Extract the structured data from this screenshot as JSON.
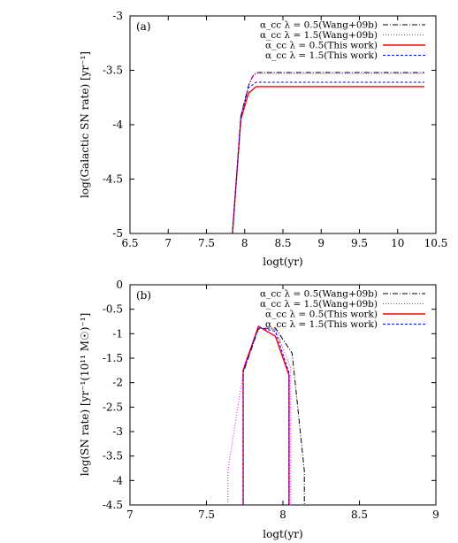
{
  "chart_data": [
    {
      "type": "line",
      "panel_label": "(a)",
      "xlabel": "logt(yr)",
      "ylabel": "log(Galactic SN rate) [yr⁻¹]",
      "xlim": [
        6.5,
        10.5
      ],
      "ylim": [
        -5,
        -3
      ],
      "xticks": [
        "6.5",
        "7",
        "7.5",
        "8",
        "8.5",
        "9",
        "9.5",
        "10",
        "10.5"
      ],
      "yticks": [
        "-3",
        "-3.5",
        "-4",
        "-4.5",
        "-5"
      ],
      "legend_position": "top-right",
      "grid": false,
      "series": [
        {
          "name": "α_cc λ = 0.5(Wang+09b)",
          "color": "#000000",
          "dash": "6,2,1,2",
          "x": [
            7.84,
            7.95,
            8.05,
            8.1,
            8.15,
            10.35
          ],
          "y": [
            -5,
            -3.92,
            -3.64,
            -3.56,
            -3.52,
            -3.52
          ]
        },
        {
          "name": "α_cc λ = 1.5(Wang+09b)",
          "color": "#ff00ff",
          "dash": "1,2",
          "x": [
            7.84,
            7.95,
            8.05,
            8.1,
            8.15,
            10.35
          ],
          "y": [
            -5,
            -3.92,
            -3.64,
            -3.56,
            -3.53,
            -3.53
          ]
        },
        {
          "name": "α_cc λ = 0.5(This work)",
          "color": "#ff0000",
          "dash": "",
          "x": [
            7.84,
            7.95,
            8.05,
            8.15,
            10.35
          ],
          "y": [
            -5,
            -3.95,
            -3.71,
            -3.65,
            -3.65
          ]
        },
        {
          "name": "α_cc λ = 1.5(This work)",
          "color": "#0000ff",
          "dash": "3,2",
          "x": [
            7.84,
            7.95,
            8.05,
            8.15,
            10.35
          ],
          "y": [
            -5,
            -3.93,
            -3.66,
            -3.61,
            -3.61
          ]
        }
      ]
    },
    {
      "type": "line",
      "panel_label": "(b)",
      "xlabel": "logt(yr)",
      "ylabel": "log(SN rate) [yr⁻¹(10¹¹ M☉)⁻¹]",
      "xlim": [
        7,
        9
      ],
      "ylim": [
        -4.5,
        0
      ],
      "xticks": [
        "7",
        "7.5",
        "8",
        "8.5",
        "9"
      ],
      "yticks": [
        "0",
        "-0.5",
        "-1",
        "-1.5",
        "-2",
        "-2.5",
        "-3",
        "-3.5",
        "-4",
        "-4.5"
      ],
      "legend_position": "top-right",
      "grid": false,
      "series": [
        {
          "name": "α_cc λ = 0.5(Wang+09b)",
          "color": "#000000",
          "dash": "6,2,1,2",
          "x": [
            7.74,
            7.74,
            7.84,
            7.95,
            8.06,
            8.14,
            8.14
          ],
          "y": [
            -4.5,
            -1.8,
            -0.9,
            -0.88,
            -1.4,
            -3.8,
            -4.5
          ]
        },
        {
          "name": "α_cc λ = 1.5(Wang+09b)",
          "color": "#ff00ff",
          "dash": "1,2",
          "x": [
            7.64,
            7.64,
            7.75,
            7.84,
            7.95,
            8.05,
            8.05
          ],
          "y": [
            -4.5,
            -3.8,
            -1.6,
            -0.88,
            -0.9,
            -1.7,
            -4.5
          ]
        },
        {
          "name": "α_cc λ = 0.5(This work)",
          "color": "#ff0000",
          "dash": "",
          "x": [
            7.74,
            7.74,
            7.84,
            7.95,
            8.04,
            8.04
          ],
          "y": [
            -4.5,
            -1.75,
            -0.85,
            -1.05,
            -1.85,
            -4.5
          ]
        },
        {
          "name": "α_cc λ = 1.5(This work)",
          "color": "#0000ff",
          "dash": "3,2",
          "x": [
            7.74,
            7.74,
            7.84,
            7.95,
            8.04,
            8.04
          ],
          "y": [
            -4.5,
            -1.78,
            -0.87,
            -0.95,
            -1.8,
            -4.5
          ]
        }
      ]
    }
  ]
}
